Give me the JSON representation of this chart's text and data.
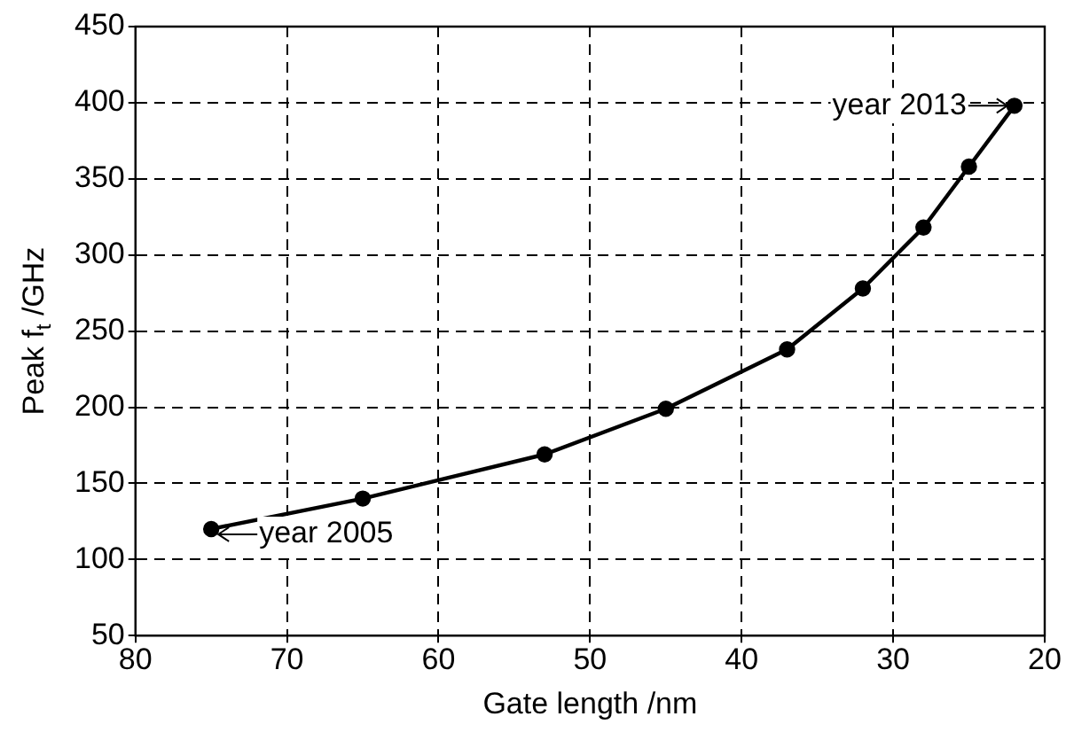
{
  "chart_data": {
    "type": "line",
    "xlabel": "Gate length /nm",
    "ylabel": "Peak f$_{t}$ /GHz",
    "x": [
      75,
      65,
      53,
      45,
      37,
      32,
      28,
      25,
      22
    ],
    "series": [
      {
        "color": "#000000",
        "values": [
          120,
          140,
          169,
          199,
          238,
          278,
          318,
          358,
          398
        ]
      }
    ],
    "xlim": [
      80,
      20
    ],
    "xticks": [
      80,
      70,
      60,
      50,
      40,
      30,
      20
    ],
    "ylim": [
      50,
      450
    ],
    "yticks": [
      50,
      100,
      150,
      200,
      250,
      300,
      350,
      400,
      450
    ],
    "grid": true,
    "legend": false,
    "marker": "circle",
    "line_style": "solid",
    "annotations": [
      {
        "text": "year 2005",
        "x": 75,
        "y": 120
      },
      {
        "text": "year 2013",
        "x": 22,
        "y": 398
      }
    ]
  }
}
